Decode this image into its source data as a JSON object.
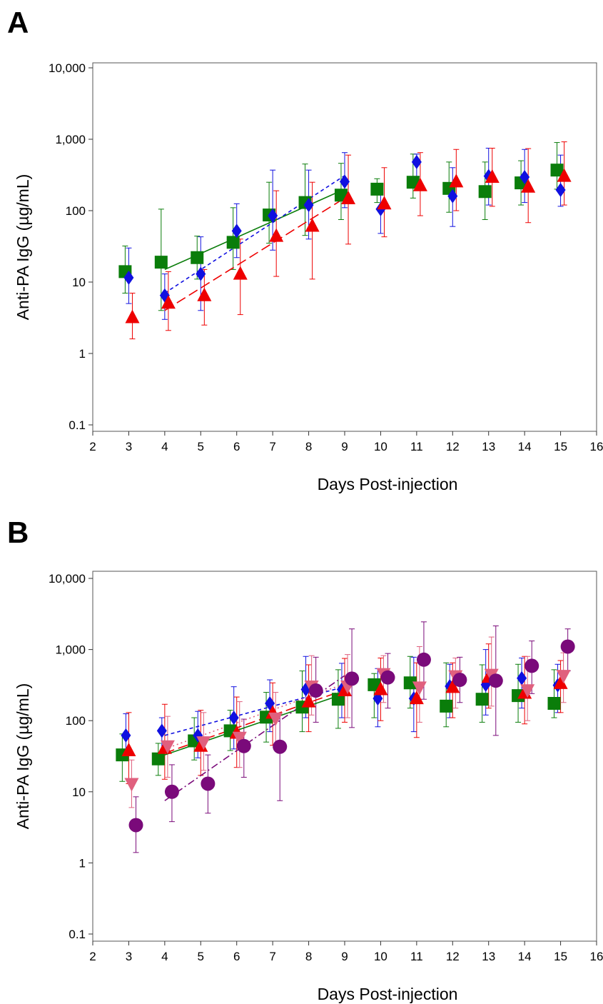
{
  "panels": [
    {
      "letter": "A",
      "xlabel": "Days Post-injection",
      "ylabel": "Anti-PA IgG (µg/mL)"
    },
    {
      "letter": "B",
      "xlabel": "Days Post-injection",
      "ylabel": "Anti-PA IgG (µg/mL)"
    }
  ],
  "chart_data": [
    {
      "type": "scatter",
      "panel": "A",
      "xlabel": "Days Post-injection",
      "ylabel": "Anti-PA IgG (µg/mL)",
      "xlim": [
        2,
        16
      ],
      "ylim": [
        0.1,
        10000
      ],
      "yscale": "log",
      "xticks": [
        "2",
        "3",
        "4",
        "5",
        "6",
        "7",
        "8",
        "9",
        "10",
        "11",
        "12",
        "13",
        "14",
        "15",
        "16"
      ],
      "yticks": [
        "0.1",
        "1",
        "10",
        "100",
        "1,000",
        "10,000"
      ],
      "yticks_values": [
        0.1,
        1,
        10,
        100,
        1000,
        10000
      ],
      "grid": false,
      "series": [
        {
          "marker": "square",
          "color": "#0a7d0a",
          "line_style": "solid",
          "x": [
            3,
            4,
            5,
            6,
            7,
            8,
            9,
            10,
            11,
            12,
            13,
            14,
            15
          ],
          "y": [
            14,
            19,
            22,
            36,
            87,
            130,
            165,
            200,
            250,
            205,
            185,
            245,
            370
          ],
          "err_low": [
            7,
            4,
            11,
            15,
            35,
            45,
            75,
            130,
            150,
            95,
            75,
            120,
            200
          ],
          "err_high": [
            32,
            105,
            44,
            110,
            250,
            450,
            460,
            280,
            620,
            480,
            480,
            500,
            900
          ],
          "x_offset": -0.1,
          "fit": {
            "x": [
              4,
              9
            ],
            "y": [
              15,
              200
            ]
          }
        },
        {
          "marker": "diamond",
          "color": "#1010e0",
          "line_style": "dashed-short",
          "x": [
            3,
            4,
            5,
            6,
            7,
            8,
            9,
            10,
            11,
            12,
            13,
            14,
            15
          ],
          "y": [
            11.5,
            6.5,
            13,
            52,
            85,
            120,
            255,
            105,
            480,
            160,
            305,
            295,
            195
          ],
          "err_low": [
            5,
            3,
            4,
            22,
            28,
            40,
            110,
            48,
            300,
            60,
            120,
            130,
            115
          ],
          "err_high": [
            30,
            13,
            43,
            125,
            370,
            370,
            650,
            230,
            620,
            400,
            750,
            720,
            600
          ],
          "x_offset": 0.0,
          "fit": {
            "x": [
              4,
              9
            ],
            "y": [
              7,
              310
            ]
          }
        },
        {
          "marker": "triangle",
          "color": "#ee0000",
          "line_style": "dashed-long",
          "x": [
            3,
            4,
            5,
            6,
            7,
            8,
            9,
            10,
            11,
            12,
            13,
            14,
            15
          ],
          "y": [
            3.2,
            5.1,
            6.5,
            13,
            44,
            61,
            148,
            125,
            225,
            255,
            295,
            215,
            305
          ],
          "err_low": [
            1.6,
            2.1,
            2.5,
            3.5,
            12,
            11,
            34,
            43,
            85,
            100,
            115,
            68,
            120
          ],
          "err_high": [
            7,
            14,
            15,
            40,
            190,
            250,
            600,
            400,
            650,
            720,
            750,
            740,
            920
          ],
          "x_offset": 0.1,
          "fit": {
            "x": [
              4,
              9
            ],
            "y": [
              4,
              150
            ]
          }
        }
      ]
    },
    {
      "type": "scatter",
      "panel": "B",
      "xlabel": "Days Post-injection",
      "ylabel": "Anti-PA IgG (µg/mL)",
      "xlim": [
        2,
        16
      ],
      "ylim": [
        0.1,
        10000
      ],
      "yscale": "log",
      "xticks": [
        "2",
        "3",
        "4",
        "5",
        "6",
        "7",
        "8",
        "9",
        "10",
        "11",
        "12",
        "13",
        "14",
        "15",
        "16"
      ],
      "yticks": [
        "0.1",
        "1",
        "10",
        "100",
        "1,000",
        "10,000"
      ],
      "yticks_values": [
        0.1,
        1,
        10,
        100,
        1000,
        10000
      ],
      "grid": false,
      "series": [
        {
          "marker": "square",
          "color": "#0a7d0a",
          "line_style": "solid",
          "x": [
            3,
            4,
            5,
            6,
            7,
            8,
            9,
            10,
            11,
            12,
            13,
            14,
            15
          ],
          "y": [
            33,
            29,
            52,
            72,
            112,
            155,
            200,
            320,
            340,
            160,
            200,
            225,
            175
          ],
          "err_low": [
            14,
            17,
            28,
            38,
            50,
            70,
            78,
            110,
            150,
            82,
            95,
            95,
            110
          ],
          "err_high": [
            65,
            48,
            110,
            140,
            250,
            500,
            520,
            460,
            800,
            650,
            610,
            620,
            520
          ],
          "x_offset": -0.18,
          "fit": {
            "x": [
              4,
              9
            ],
            "y": [
              33,
              240
            ]
          }
        },
        {
          "marker": "diamond",
          "color": "#1010e0",
          "line_style": "dashed-short",
          "x": [
            3,
            4,
            5,
            6,
            7,
            8,
            9,
            10,
            11,
            12,
            13,
            14,
            15
          ],
          "y": [
            62,
            72,
            62,
            110,
            175,
            275,
            275,
            205,
            205,
            305,
            320,
            395,
            315
          ],
          "err_low": [
            30,
            30,
            30,
            40,
            70,
            110,
            110,
            82,
            70,
            110,
            120,
            150,
            130
          ],
          "err_high": [
            125,
            110,
            135,
            300,
            375,
            800,
            640,
            540,
            780,
            620,
            1000,
            760,
            620
          ],
          "x_offset": -0.08,
          "fit": {
            "x": [
              4,
              9
            ],
            "y": [
              62,
              300
            ]
          }
        },
        {
          "marker": "triangle",
          "color": "#ee0000",
          "line_style": "dashed-long",
          "x": [
            3,
            4,
            5,
            6,
            7,
            8,
            9,
            10,
            11,
            12,
            13,
            14,
            15
          ],
          "y": [
            38,
            41,
            44,
            67,
            128,
            185,
            265,
            275,
            205,
            295,
            410,
            245,
            335
          ],
          "err_low": [
            13,
            15,
            17,
            22,
            45,
            70,
            95,
            100,
            58,
            110,
            150,
            90,
            130
          ],
          "err_high": [
            130,
            170,
            140,
            215,
            340,
            610,
            750,
            760,
            650,
            650,
            1200,
            800,
            700
          ],
          "x_offset": 0.0,
          "fit": {
            "x": [
              4,
              9
            ],
            "y": [
              35,
              270
            ]
          }
        },
        {
          "marker": "triangle-down",
          "color": "#e0607e",
          "line_style": "dotted",
          "x": [
            3,
            4,
            5,
            6,
            7,
            8,
            9,
            10,
            11,
            12,
            13,
            14,
            15
          ],
          "y": [
            13,
            44,
            50,
            58,
            108,
            305,
            305,
            455,
            295,
            425,
            445,
            270,
            430
          ],
          "err_low": [
            6,
            16,
            20,
            22,
            42,
            120,
            110,
            180,
            95,
            150,
            160,
            100,
            180
          ],
          "err_high": [
            28,
            115,
            130,
            185,
            250,
            820,
            850,
            820,
            1100,
            760,
            1500,
            800,
            900
          ],
          "x_offset": 0.08,
          "fit": {
            "x": [
              4,
              9
            ],
            "y": [
              40,
              330
            ]
          }
        },
        {
          "marker": "circle",
          "color": "#7a0a7a",
          "line_style": "dash-dot",
          "x": [
            3,
            4,
            5,
            6,
            7,
            8,
            9,
            10,
            11,
            12,
            13,
            14,
            15
          ],
          "y": [
            3.4,
            10,
            13,
            44,
            43,
            265,
            390,
            405,
            720,
            375,
            365,
            590,
            1100
          ],
          "err_low": [
            1.4,
            3.8,
            5,
            16,
            7.5,
            95,
            80,
            150,
            200,
            180,
            62,
            240,
            500
          ],
          "err_high": [
            8.5,
            24,
            33,
            105,
            120,
            780,
            1950,
            880,
            2450,
            780,
            2150,
            1320,
            1950
          ],
          "x_offset": 0.2,
          "fit": {
            "x": [
              4,
              9
            ],
            "y": [
              7.5,
              430
            ]
          }
        }
      ]
    }
  ]
}
